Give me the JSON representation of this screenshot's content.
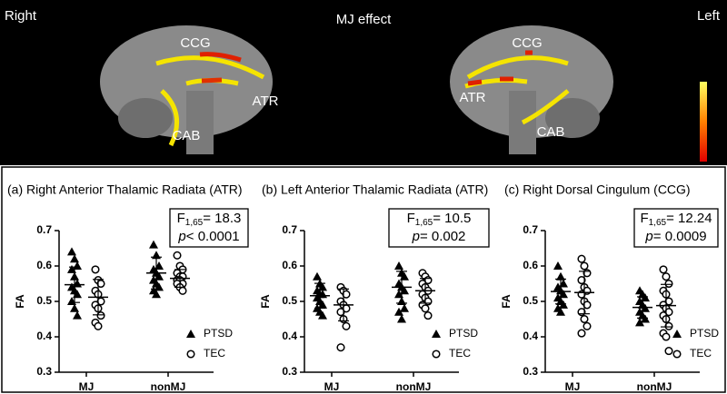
{
  "brain_panel": {
    "left_label": "Right",
    "title": "MJ effect",
    "right_label": "Left",
    "right_hemisphere": {
      "labels": [
        "CCG",
        "ATR",
        "CAB"
      ]
    },
    "left_hemisphere": {
      "labels": [
        "CCG",
        "ATR",
        "CAB"
      ]
    }
  },
  "chart_data": [
    {
      "type": "scatter",
      "title": "(a) Right Anterior Thalamic Radiata (ATR)",
      "ylabel": "FA",
      "categories": [
        "MJ",
        "nonMJ"
      ],
      "ylim": [
        0.3,
        0.7
      ],
      "yticks": [
        0.3,
        0.4,
        0.5,
        0.6,
        0.7
      ],
      "annotation": {
        "stat_symbol": "F",
        "stat_df": "1,65",
        "stat_text": "= 18.3",
        "p_symbol": "p",
        "p_text": "< 0.0001"
      },
      "series": [
        {
          "name": "PTSD",
          "marker": "triangle",
          "color": "#000000",
          "values": [
            [
              0.64,
              0.62,
              0.6,
              0.59,
              0.57,
              0.55,
              0.54,
              0.53,
              0.52,
              0.5,
              0.48,
              0.46
            ],
            [
              0.66,
              0.63,
              0.6,
              0.59,
              0.58,
              0.57,
              0.56,
              0.55,
              0.54,
              0.53,
              0.52
            ]
          ],
          "means": [
            0.547,
            0.58
          ],
          "sds": [
            0.05,
            0.045
          ]
        },
        {
          "name": "TEC",
          "marker": "circle",
          "color": "#000000",
          "values": [
            [
              0.59,
              0.56,
              0.55,
              0.53,
              0.52,
              0.5,
              0.49,
              0.48,
              0.46,
              0.44,
              0.43
            ],
            [
              0.63,
              0.6,
              0.59,
              0.58,
              0.57,
              0.57,
              0.56,
              0.56,
              0.55,
              0.55,
              0.54,
              0.53
            ]
          ],
          "means": [
            0.512,
            0.565
          ],
          "sds": [
            0.05,
            0.025
          ]
        }
      ]
    },
    {
      "type": "scatter",
      "title": "(b) Left Anterior Thalamic Radiata (ATR)",
      "ylabel": "FA",
      "categories": [
        "MJ",
        "nonMJ"
      ],
      "ylim": [
        0.3,
        0.7
      ],
      "yticks": [
        0.3,
        0.4,
        0.5,
        0.6,
        0.7
      ],
      "annotation": {
        "stat_symbol": "F",
        "stat_df": "1,65",
        "stat_text": "= 10.5",
        "p_symbol": "p",
        "p_text": "= 0.002"
      },
      "series": [
        {
          "name": "PTSD",
          "marker": "triangle",
          "color": "#000000",
          "values": [
            [
              0.57,
              0.55,
              0.54,
              0.53,
              0.52,
              0.52,
              0.51,
              0.5,
              0.49,
              0.48,
              0.47,
              0.46
            ],
            [
              0.6,
              0.58,
              0.57,
              0.55,
              0.54,
              0.53,
              0.52,
              0.5,
              0.48,
              0.47,
              0.45
            ]
          ],
          "means": [
            0.516,
            0.54
          ],
          "sds": [
            0.035,
            0.045
          ]
        },
        {
          "name": "TEC",
          "marker": "circle",
          "color": "#000000",
          "values": [
            [
              0.54,
              0.53,
              0.52,
              0.5,
              0.49,
              0.48,
              0.47,
              0.45,
              0.43,
              0.37
            ],
            [
              0.58,
              0.57,
              0.56,
              0.55,
              0.54,
              0.53,
              0.52,
              0.51,
              0.5,
              0.49,
              0.48,
              0.46
            ]
          ],
          "means": [
            0.49,
            0.53
          ],
          "sds": [
            0.045,
            0.035
          ]
        }
      ]
    },
    {
      "type": "scatter",
      "title": "(c) Right Dorsal Cingulum (CCG)",
      "ylabel": "FA",
      "categories": [
        "MJ",
        "nonMJ"
      ],
      "ylim": [
        0.3,
        0.7
      ],
      "yticks": [
        0.3,
        0.4,
        0.5,
        0.6,
        0.7
      ],
      "annotation": {
        "stat_symbol": "F",
        "stat_df": "1,65",
        "stat_text": "= 12.24",
        "p_symbol": "p",
        "p_text": "= 0.0009"
      },
      "series": [
        {
          "name": "PTSD",
          "marker": "triangle",
          "color": "#000000",
          "values": [
            [
              0.6,
              0.57,
              0.55,
              0.54,
              0.53,
              0.52,
              0.51,
              0.5,
              0.49,
              0.48,
              0.47
            ],
            [
              0.53,
              0.52,
              0.51,
              0.5,
              0.49,
              0.48,
              0.47,
              0.46,
              0.45,
              0.44
            ]
          ],
          "means": [
            0.528,
            0.483
          ],
          "sds": [
            0.035,
            0.03
          ]
        },
        {
          "name": "TEC",
          "marker": "circle",
          "color": "#000000",
          "values": [
            [
              0.62,
              0.6,
              0.58,
              0.56,
              0.54,
              0.53,
              0.52,
              0.5,
              0.49,
              0.47,
              0.45,
              0.43,
              0.41
            ],
            [
              0.59,
              0.57,
              0.55,
              0.53,
              0.52,
              0.5,
              0.49,
              0.48,
              0.47,
              0.46,
              0.45,
              0.43,
              0.41,
              0.4,
              0.36
            ]
          ],
          "means": [
            0.525,
            0.488
          ],
          "sds": [
            0.06,
            0.06
          ]
        }
      ]
    }
  ]
}
